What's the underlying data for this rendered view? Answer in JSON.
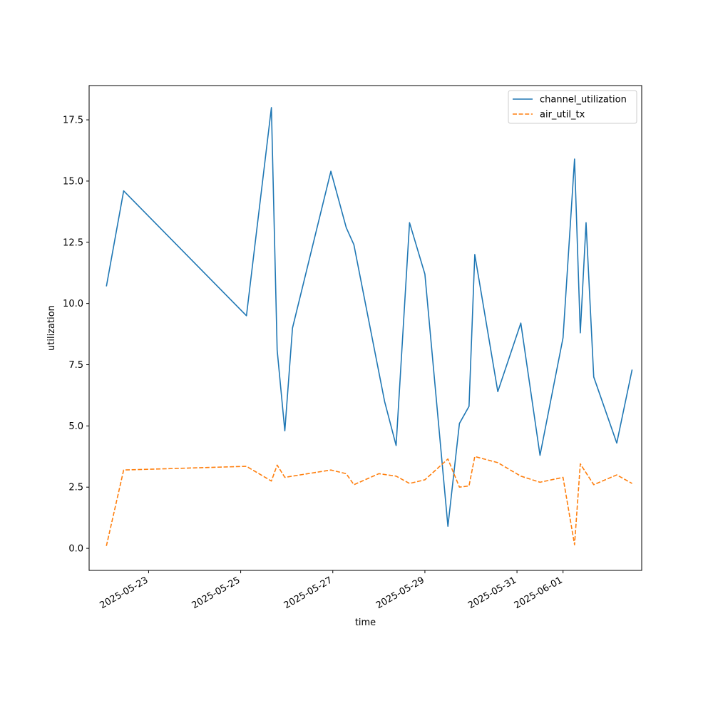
{
  "chart_data": {
    "type": "line",
    "xlabel": "time",
    "ylabel": "utilization",
    "xlim": [
      "2025-05-21T17:00",
      "2025-06-02T17:00"
    ],
    "ylim": [
      -0.9,
      18.9
    ],
    "x_ticks": [
      "2025-05-23",
      "2025-05-25",
      "2025-05-27",
      "2025-05-29",
      "2025-05-31",
      "2025-06-01"
    ],
    "y_ticks": [
      0.0,
      2.5,
      5.0,
      7.5,
      10.0,
      12.5,
      15.0,
      17.5
    ],
    "legend_position": "top-right",
    "grid": false,
    "series": [
      {
        "name": "channel_utilization",
        "color": "#1f77b4",
        "style": "solid",
        "points": [
          [
            "2025-05-22T02:00",
            10.7
          ],
          [
            "2025-05-22T11:00",
            14.6
          ],
          [
            "2025-05-25T03:00",
            9.5
          ],
          [
            "2025-05-25T16:00",
            18.0
          ],
          [
            "2025-05-25T19:00",
            8.1
          ],
          [
            "2025-05-25T23:00",
            4.8
          ],
          [
            "2025-05-26T03:00",
            9.0
          ],
          [
            "2025-05-26T23:00",
            15.4
          ],
          [
            "2025-05-27T07:00",
            13.1
          ],
          [
            "2025-05-27T11:00",
            12.4
          ],
          [
            "2025-05-28T03:00",
            6.0
          ],
          [
            "2025-05-28T09:00",
            4.2
          ],
          [
            "2025-05-28T16:00",
            13.3
          ],
          [
            "2025-05-29T00:00",
            11.2
          ],
          [
            "2025-05-29T12:00",
            0.9
          ],
          [
            "2025-05-29T18:00",
            5.1
          ],
          [
            "2025-05-29T23:00",
            5.8
          ],
          [
            "2025-05-30T02:00",
            12.0
          ],
          [
            "2025-05-30T14:00",
            6.4
          ],
          [
            "2025-05-31T02:00",
            9.2
          ],
          [
            "2025-05-31T12:00",
            3.8
          ],
          [
            "2025-06-01T00:00",
            8.6
          ],
          [
            "2025-06-01T06:00",
            15.9
          ],
          [
            "2025-06-01T09:00",
            8.8
          ],
          [
            "2025-06-01T12:00",
            13.3
          ],
          [
            "2025-06-01T16:00",
            7.0
          ],
          [
            "2025-06-02T04:00",
            4.3
          ],
          [
            "2025-06-02T12:00",
            7.3
          ]
        ]
      },
      {
        "name": "air_util_tx",
        "color": "#ff7f0e",
        "style": "dashed",
        "points": [
          [
            "2025-05-22T02:00",
            0.1
          ],
          [
            "2025-05-22T11:00",
            3.2
          ],
          [
            "2025-05-25T03:00",
            3.35
          ],
          [
            "2025-05-25T16:00",
            2.75
          ],
          [
            "2025-05-25T19:00",
            3.4
          ],
          [
            "2025-05-25T23:00",
            2.9
          ],
          [
            "2025-05-26T23:00",
            3.2
          ],
          [
            "2025-05-27T07:00",
            3.05
          ],
          [
            "2025-05-27T11:00",
            2.6
          ],
          [
            "2025-05-28T00:00",
            3.05
          ],
          [
            "2025-05-28T09:00",
            2.95
          ],
          [
            "2025-05-28T16:00",
            2.65
          ],
          [
            "2025-05-29T00:00",
            2.8
          ],
          [
            "2025-05-29T12:00",
            3.65
          ],
          [
            "2025-05-29T18:00",
            2.5
          ],
          [
            "2025-05-29T23:00",
            2.55
          ],
          [
            "2025-05-30T02:00",
            3.75
          ],
          [
            "2025-05-30T14:00",
            3.5
          ],
          [
            "2025-05-31T02:00",
            2.95
          ],
          [
            "2025-05-31T12:00",
            2.7
          ],
          [
            "2025-06-01T00:00",
            2.9
          ],
          [
            "2025-06-01T06:00",
            0.15
          ],
          [
            "2025-06-01T09:00",
            3.45
          ],
          [
            "2025-06-01T16:00",
            2.6
          ],
          [
            "2025-06-02T04:00",
            3.0
          ],
          [
            "2025-06-02T12:00",
            2.65
          ]
        ]
      }
    ]
  }
}
